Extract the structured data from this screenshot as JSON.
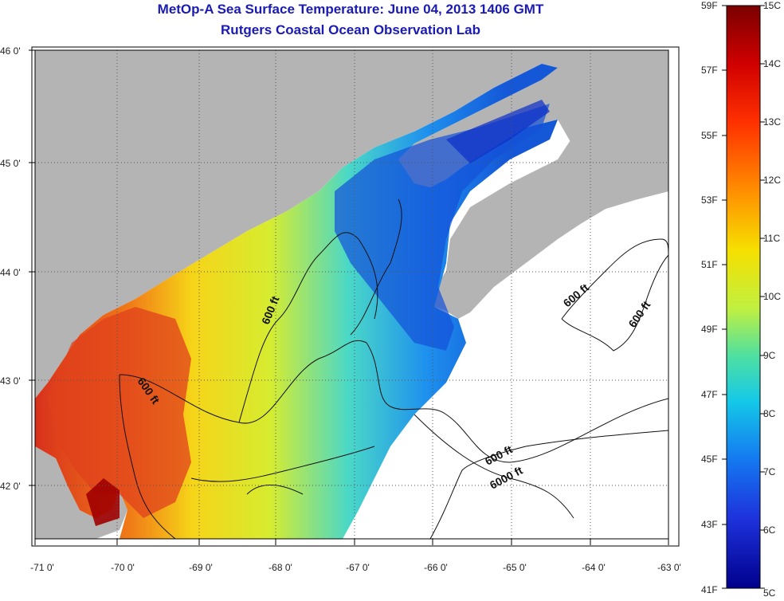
{
  "header": {
    "title": "MetOp-A Sea Surface Temperature:  June 04, 2013 1406 GMT",
    "subtitle": "Rutgers Coastal Ocean Observation Lab"
  },
  "map": {
    "lon_ticks": [
      "-71 0'",
      "-70 0'",
      "-69 0'",
      "-68 0'",
      "-67 0'",
      "-66 0'",
      "-65 0'",
      "-64 0'",
      "-63 0'"
    ],
    "lat_ticks": [
      "46 0'",
      "45 0'",
      "44 0'",
      "43 0'",
      "42 0'"
    ],
    "contour_labels": [
      "600 ft",
      "600 ft",
      "600 ft",
      "600 ft",
      "600 ft",
      "6000 ft"
    ],
    "colors": {
      "land": "#b4b4b4",
      "no_data": "#ffffff",
      "warm": "#d8281a",
      "mid": "#e8e020",
      "cool": "#28c8c8",
      "cold": "#1460d8"
    }
  },
  "colorbar": {
    "fahrenheit_labels": [
      "59F",
      "57F",
      "55F",
      "53F",
      "51F",
      "49F",
      "47F",
      "45F",
      "43F",
      "41F"
    ],
    "celsius_labels": [
      "15C",
      "14C",
      "13C",
      "12C",
      "11C",
      "10C",
      "9C",
      "8C",
      "7C",
      "6C",
      "5C"
    ],
    "scale": [
      "#7a0000",
      "#d00000",
      "#ff5a00",
      "#ffb000",
      "#f2f000",
      "#8cf06a",
      "#14d2e6",
      "#1488f0",
      "#1e3ce6",
      "#00008c"
    ]
  }
}
